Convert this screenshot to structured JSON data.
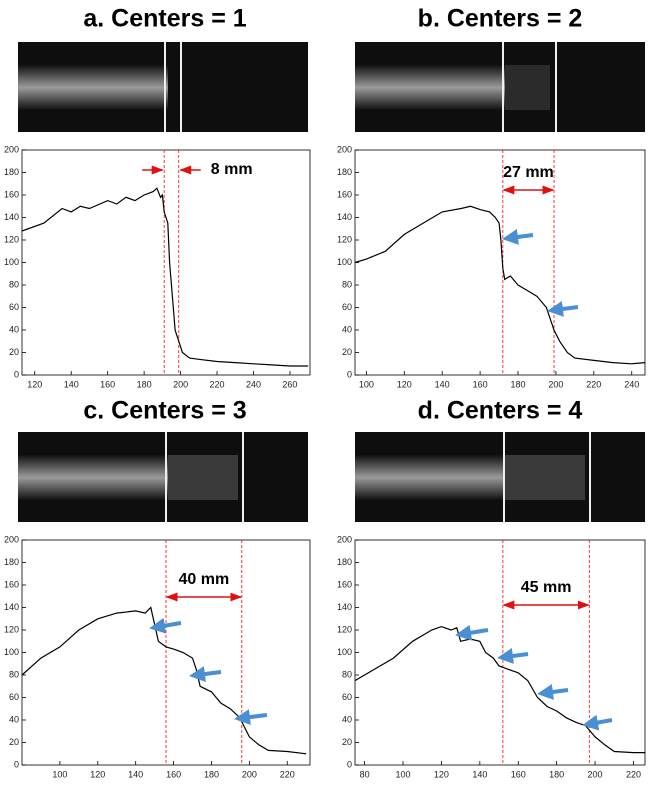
{
  "chart_data": [
    {
      "type": "line",
      "title": "a. Centers = 1",
      "color": "#000000",
      "vline_color": "#ff0000",
      "x": [
        113,
        125,
        135,
        140,
        145,
        150,
        160,
        165,
        170,
        175,
        180,
        185,
        187,
        189,
        190,
        191,
        193,
        194,
        196,
        197,
        199,
        201,
        205,
        210,
        220,
        230,
        240,
        250,
        260,
        270
      ],
      "values": [
        128,
        135,
        148,
        145,
        150,
        148,
        155,
        152,
        158,
        155,
        160,
        163,
        166,
        158,
        160,
        145,
        135,
        100,
        60,
        40,
        30,
        20,
        15,
        14,
        12,
        11,
        10,
        9,
        8,
        8
      ],
      "xlim": [
        113,
        271
      ],
      "ylim": [
        0,
        200
      ],
      "xticks": [
        120,
        140,
        160,
        180,
        200,
        220,
        240,
        260
      ],
      "yticks": [
        0,
        20,
        40,
        60,
        80,
        100,
        120,
        140,
        160,
        180,
        200
      ],
      "vlines": [
        191,
        199
      ],
      "annotation": "8 mm"
    },
    {
      "type": "line",
      "title": "b. Centers = 2",
      "color": "#000000",
      "vline_color": "#ff0000",
      "x": [
        94,
        100,
        110,
        120,
        130,
        140,
        150,
        155,
        160,
        165,
        168,
        170,
        171,
        172,
        173,
        176,
        180,
        185,
        190,
        195,
        197,
        199,
        202,
        206,
        210,
        220,
        230,
        240,
        247
      ],
      "values": [
        100,
        103,
        110,
        125,
        135,
        145,
        148,
        150,
        147,
        145,
        140,
        135,
        120,
        95,
        85,
        88,
        80,
        75,
        70,
        60,
        50,
        40,
        30,
        20,
        15,
        13,
        11,
        10,
        11
      ],
      "xlim": [
        94,
        247
      ],
      "ylim": [
        0,
        200
      ],
      "xticks": [
        100,
        120,
        140,
        160,
        180,
        200,
        220,
        240
      ],
      "yticks": [
        0,
        20,
        40,
        60,
        80,
        100,
        120,
        140,
        160,
        180,
        200
      ],
      "vlines": [
        172,
        199
      ],
      "annotation": "27 mm"
    },
    {
      "type": "line",
      "title": "c. Centers = 3",
      "color": "#000000",
      "vline_color": "#ff0000",
      "x": [
        80,
        90,
        100,
        110,
        120,
        130,
        140,
        145,
        148,
        150,
        152,
        156,
        160,
        165,
        170,
        172,
        174,
        180,
        185,
        190,
        195,
        197,
        200,
        205,
        210,
        220,
        230
      ],
      "values": [
        80,
        95,
        105,
        120,
        130,
        135,
        137,
        135,
        140,
        125,
        110,
        105,
        103,
        100,
        95,
        85,
        70,
        65,
        55,
        50,
        42,
        35,
        25,
        18,
        13,
        12,
        10
      ],
      "xlim": [
        80,
        232
      ],
      "ylim": [
        0,
        200
      ],
      "xticks": [
        100,
        120,
        140,
        160,
        180,
        200,
        220
      ],
      "yticks": [
        0,
        20,
        40,
        60,
        80,
        100,
        120,
        140,
        160,
        180,
        200
      ],
      "vlines": [
        156,
        196
      ],
      "annotation": "40 mm"
    },
    {
      "type": "line",
      "title": "d. Centers = 4",
      "color": "#000000",
      "vline_color": "#ff0000",
      "x": [
        75,
        85,
        95,
        105,
        115,
        120,
        125,
        128,
        130,
        135,
        140,
        143,
        147,
        150,
        155,
        160,
        165,
        170,
        175,
        180,
        185,
        190,
        195,
        200,
        205,
        210,
        220,
        226
      ],
      "values": [
        75,
        85,
        95,
        110,
        120,
        123,
        120,
        122,
        110,
        112,
        110,
        100,
        95,
        88,
        85,
        82,
        75,
        60,
        52,
        48,
        42,
        38,
        35,
        25,
        18,
        12,
        11,
        11
      ],
      "xlim": [
        75,
        226
      ],
      "ylim": [
        0,
        200
      ],
      "xticks": [
        80,
        100,
        120,
        140,
        160,
        180,
        200,
        220
      ],
      "yticks": [
        0,
        20,
        40,
        60,
        80,
        100,
        120,
        140,
        160,
        180,
        200
      ],
      "vlines": [
        152,
        197
      ],
      "annotation": "45 mm"
    }
  ]
}
